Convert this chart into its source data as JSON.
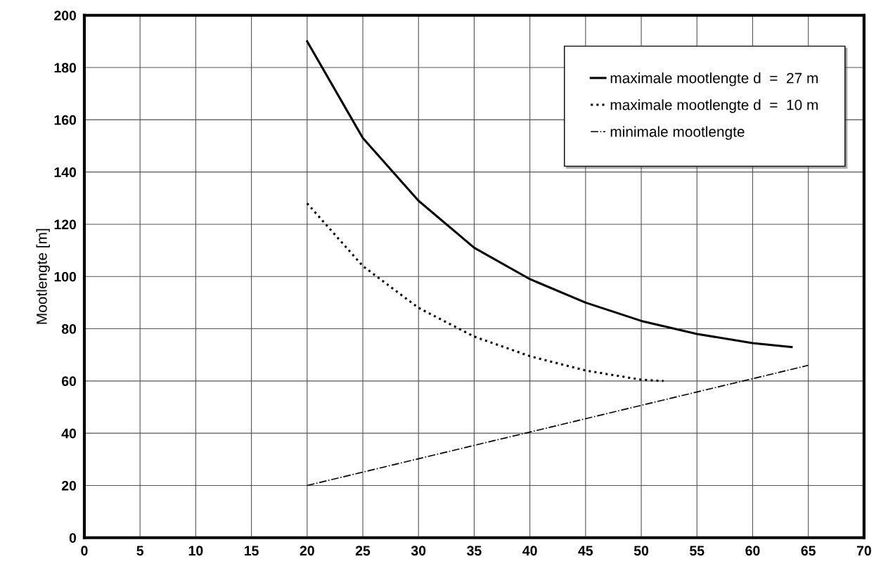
{
  "chart_data": {
    "type": "line",
    "ylabel": "Mootlengte [m]",
    "xlim": [
      0,
      70
    ],
    "ylim": [
      0,
      200
    ],
    "xticks": [
      0,
      5,
      10,
      15,
      20,
      25,
      30,
      35,
      40,
      45,
      50,
      55,
      60,
      65,
      70
    ],
    "yticks": [
      0,
      20,
      40,
      60,
      80,
      100,
      120,
      140,
      160,
      180,
      200
    ],
    "grid": true,
    "legend": "top right",
    "marker": "none",
    "series": [
      {
        "name": "maximale mootlengte d  =  27 m",
        "color": "#000000",
        "line_style": "solid",
        "x": [
          20,
          25,
          30,
          35,
          40,
          45,
          50,
          55,
          60,
          63.5
        ],
        "values": [
          190,
          153,
          129,
          111,
          99,
          90,
          83,
          78,
          74.5,
          73
        ]
      },
      {
        "name": "maximale mootlengte d  =  10 m",
        "color": "#000000",
        "line_style": "dotted",
        "x": [
          20,
          25,
          30,
          35,
          40,
          45,
          50,
          52
        ],
        "values": [
          128,
          104,
          88,
          77,
          69.5,
          64,
          60.5,
          60
        ]
      },
      {
        "name": "minimale mootlengte",
        "color": "#000000",
        "line_style": "dashdot",
        "x": [
          20,
          65
        ],
        "values": [
          20,
          66
        ]
      }
    ]
  }
}
